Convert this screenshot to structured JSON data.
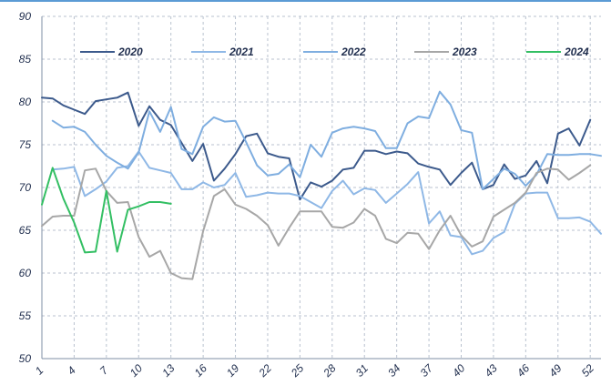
{
  "chart_data": {
    "type": "line",
    "title": "",
    "xlabel": "",
    "ylabel": "",
    "ylim": [
      50,
      90
    ],
    "yticks": [
      50,
      55,
      60,
      65,
      70,
      75,
      80,
      85,
      90
    ],
    "ytick_labels": [
      "50",
      "55",
      "60",
      "65",
      "70",
      "75",
      "80",
      "85",
      "90"
    ],
    "xlim": [
      1,
      53
    ],
    "xticks": [
      1,
      4,
      7,
      10,
      13,
      16,
      19,
      22,
      25,
      28,
      31,
      34,
      37,
      40,
      43,
      46,
      49,
      52
    ],
    "xtick_labels": [
      "1",
      "4",
      "7",
      "10",
      "13",
      "16",
      "19",
      "22",
      "25",
      "28",
      "31",
      "34",
      "37",
      "40",
      "43",
      "46",
      "49",
      "52"
    ],
    "grid": true,
    "legend_position": "top",
    "series": [
      {
        "name": "2020",
        "color": "#3c5a8c",
        "values": [
          80.5,
          80.4,
          79.6,
          79.1,
          78.6,
          80.1,
          80.3,
          80.5,
          81.1,
          77.2,
          79.5,
          77.9,
          77.3,
          75.2,
          73.1,
          75.1,
          70.8,
          72.2,
          73.9,
          76.0,
          76.3,
          74.0,
          73.6,
          73.4,
          68.6,
          70.6,
          70.1,
          70.8,
          72.1,
          72.3,
          74.3,
          74.3,
          73.9,
          74.2,
          74.0,
          72.8,
          72.4,
          72.1,
          70.3,
          71.7,
          72.9,
          69.8,
          70.3,
          72.7,
          71.0,
          71.4,
          73.1,
          70.5,
          76.3,
          76.9,
          74.9,
          77.9
        ]
      },
      {
        "name": "2021",
        "color": "#8fb8e6",
        "values": [
          null,
          72.1,
          72.2,
          72.4,
          69.0,
          69.8,
          70.7,
          72.3,
          72.5,
          74.2,
          72.3,
          72.0,
          71.7,
          69.8,
          69.8,
          70.6,
          70.0,
          70.3,
          71.7,
          68.9,
          69.1,
          69.4,
          69.3,
          69.3,
          69.0,
          68.3,
          67.6,
          69.6,
          70.8,
          69.2,
          69.9,
          69.7,
          68.2,
          69.3,
          70.4,
          71.8,
          65.8,
          67.2,
          64.4,
          64.2,
          62.2,
          62.6,
          64.1,
          64.8,
          68.1,
          69.3,
          69.4,
          69.4,
          66.4,
          66.4,
          66.5,
          66.0,
          64.6
        ]
      },
      {
        "name": "2022",
        "color": "#7faee0",
        "values": [
          null,
          77.8,
          77.0,
          77.1,
          76.5,
          75.0,
          73.7,
          72.9,
          72.2,
          74.1,
          78.9,
          76.5,
          79.4,
          74.5,
          73.9,
          77.1,
          78.2,
          77.7,
          77.8,
          75.3,
          72.6,
          71.4,
          71.6,
          72.7,
          71.2,
          75.0,
          73.6,
          76.4,
          76.9,
          77.1,
          76.9,
          76.6,
          74.6,
          74.6,
          77.5,
          78.3,
          78.1,
          81.2,
          79.7,
          76.7,
          76.4,
          69.8,
          71.0,
          72.2,
          71.6,
          70.2,
          71.5,
          73.9,
          73.8,
          73.8,
          73.9,
          73.9,
          73.7
        ]
      },
      {
        "name": "2023",
        "color": "#a7a7a7",
        "values": [
          65.5,
          66.6,
          66.7,
          66.7,
          72.0,
          72.2,
          69.6,
          68.2,
          68.3,
          64.2,
          61.9,
          62.6,
          60.0,
          59.4,
          59.3,
          64.9,
          69.0,
          69.8,
          68.0,
          67.5,
          66.7,
          65.6,
          63.2,
          65.3,
          67.2,
          67.2,
          67.2,
          65.4,
          65.3,
          65.9,
          67.5,
          66.7,
          64.0,
          63.5,
          64.7,
          64.6,
          62.8,
          65.0,
          66.7,
          64.4,
          63.1,
          63.7,
          66.6,
          67.4,
          68.2,
          69.4,
          71.7,
          72.2,
          72.1,
          70.9,
          71.7,
          72.6
        ]
      },
      {
        "name": "2024",
        "color": "#33bf63",
        "values": [
          68.0,
          72.3,
          68.7,
          65.9,
          62.4,
          62.5,
          69.6,
          62.5,
          67.4,
          67.8,
          68.3,
          68.3,
          68.1
        ]
      }
    ]
  }
}
